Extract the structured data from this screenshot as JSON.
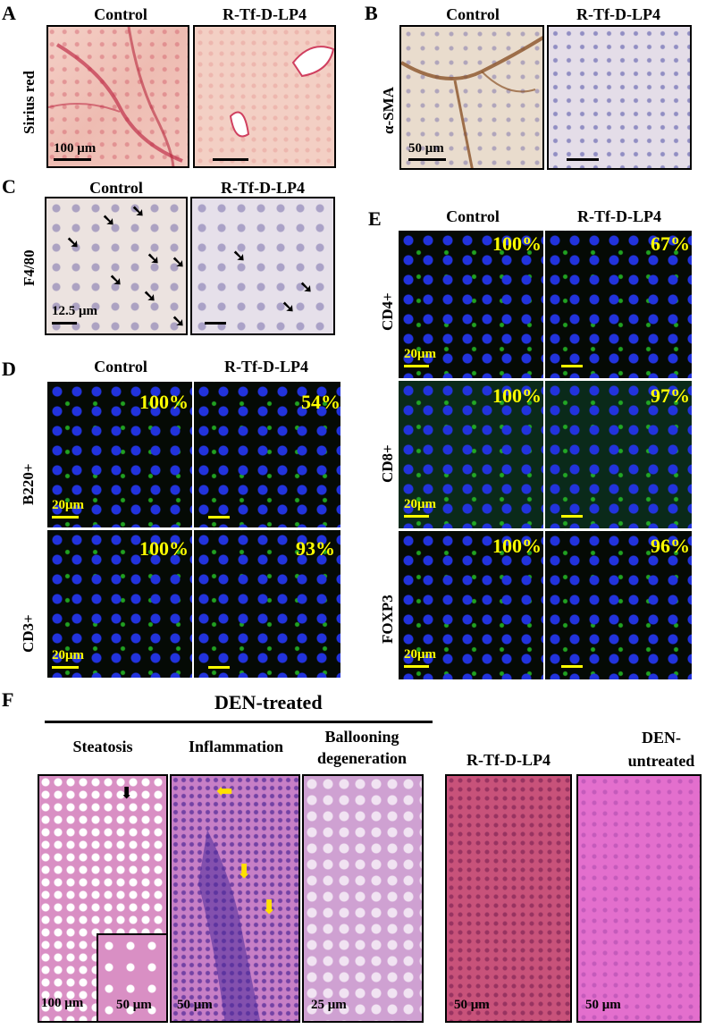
{
  "panels": {
    "A": {
      "letter": "A",
      "col1": "Control",
      "col2": "R-Tf-D-LP4",
      "row": "Sirius red",
      "scale": "100 μm"
    },
    "B": {
      "letter": "B",
      "col1": "Control",
      "col2": "R-Tf-D-LP4",
      "row": "α-SMA",
      "scale": "50 μm"
    },
    "C": {
      "letter": "C",
      "col1": "Control",
      "col2": "R-Tf-D-LP4",
      "row": "F4/80",
      "scale": "12.5 μm"
    },
    "D": {
      "letter": "D",
      "col1": "Control",
      "col2": "R-Tf-D-LP4",
      "rows": [
        {
          "label": "B220+",
          "pct1": "100%",
          "pct2": "54%",
          "scale": "20μm"
        },
        {
          "label": "CD3+",
          "pct1": "100%",
          "pct2": "93%",
          "scale": "20μm"
        }
      ]
    },
    "E": {
      "letter": "E",
      "col1": "Control",
      "col2": "R-Tf-D-LP4",
      "rows": [
        {
          "label": "CD4+",
          "pct1": "100%",
          "pct2": "67%",
          "scale": "20μm"
        },
        {
          "label": "CD8+",
          "pct1": "100%",
          "pct2": "97%",
          "scale": "20μm"
        },
        {
          "label": "FOXP3",
          "pct1": "100%",
          "pct2": "96%",
          "scale": "20μm"
        }
      ]
    },
    "F": {
      "letter": "F",
      "group": "DEN-treated",
      "cols": [
        {
          "label": "Steatosis",
          "scale": "100 μm",
          "inset_scale": "50 μm"
        },
        {
          "label": "Inflammation",
          "scale": "50 μm"
        },
        {
          "label": "Ballooning degeneration",
          "scale": "25 μm"
        },
        {
          "label": "R-Tf-D-LP4",
          "scale": "50 μm"
        },
        {
          "label": "DEN- untreated",
          "scale": "50 μm"
        }
      ]
    }
  },
  "colors": {
    "percent": "#ffff00",
    "scale_dark": "#000000",
    "scale_light": "#ffff00"
  },
  "arrow_glyph": "➘",
  "arrow_yellow_glyph": "⬇"
}
